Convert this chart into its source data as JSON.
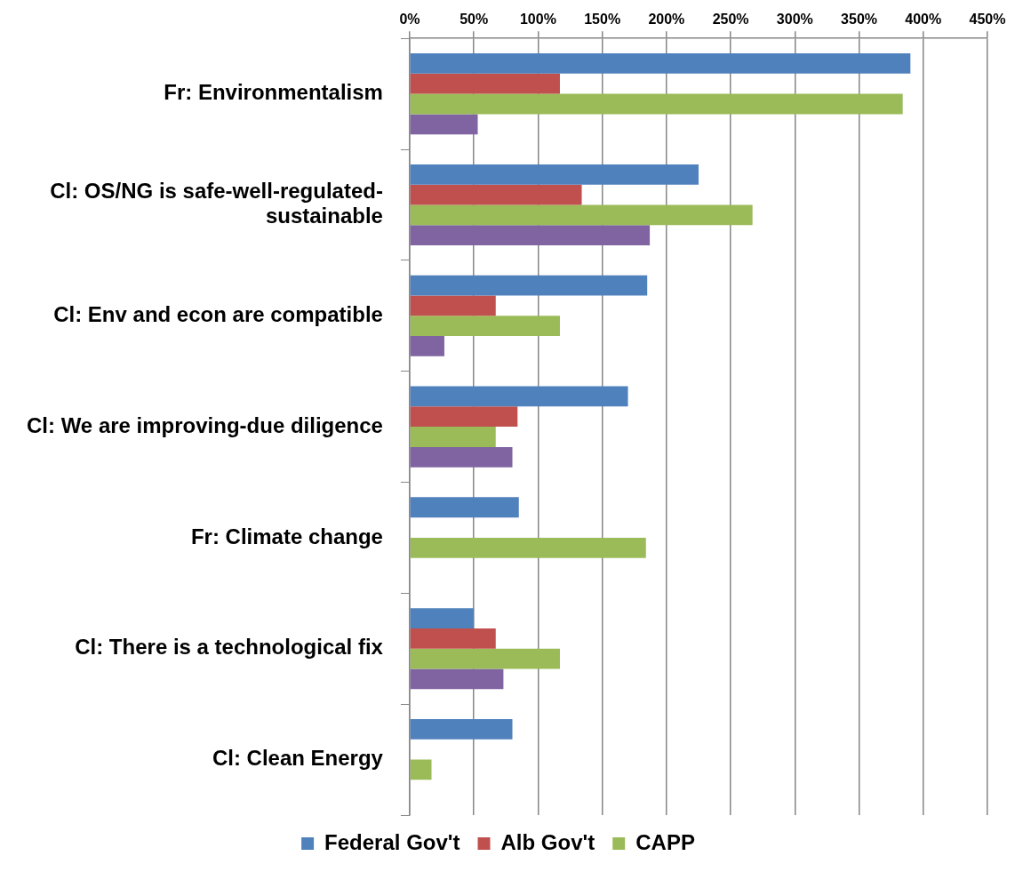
{
  "chart_data": {
    "type": "bar",
    "orientation": "horizontal",
    "categories": [
      "Fr: Environmentalism",
      "Cl: OS/NG is safe-well-regulated-sustainable",
      "Cl: Env and econ are compatible",
      "Cl: We are improving-due diligence",
      "Fr: Climate change",
      "Cl: There is a technological fix",
      "Cl: Clean Energy"
    ],
    "series": [
      {
        "name": "Federal Gov't",
        "color": "#4f81bd",
        "values": [
          390,
          225,
          185,
          170,
          85,
          50,
          80
        ]
      },
      {
        "name": "Alb Gov't",
        "color": "#c0504d",
        "values": [
          117,
          134,
          67,
          84,
          null,
          67,
          null
        ]
      },
      {
        "name": "CAPP",
        "color": "#9bbb59",
        "values": [
          384,
          267,
          117,
          67,
          184,
          117,
          17
        ]
      },
      {
        "color": "#8064a2",
        "values": [
          53,
          187,
          27,
          80,
          null,
          73,
          null
        ]
      }
    ],
    "xlim": [
      0,
      450
    ],
    "xticks": [
      {
        "value": 0,
        "label": "0%"
      },
      {
        "value": 50,
        "label": "50%"
      },
      {
        "value": 100,
        "label": "100%"
      },
      {
        "value": 150,
        "label": "150%"
      },
      {
        "value": 200,
        "label": "200%"
      },
      {
        "value": 250,
        "label": "250%"
      },
      {
        "value": 300,
        "label": "300%"
      },
      {
        "value": 350,
        "label": "350%"
      },
      {
        "value": 400,
        "label": "400%"
      },
      {
        "value": 450,
        "label": "450%"
      }
    ],
    "grid": "x",
    "legend": "bottom"
  }
}
